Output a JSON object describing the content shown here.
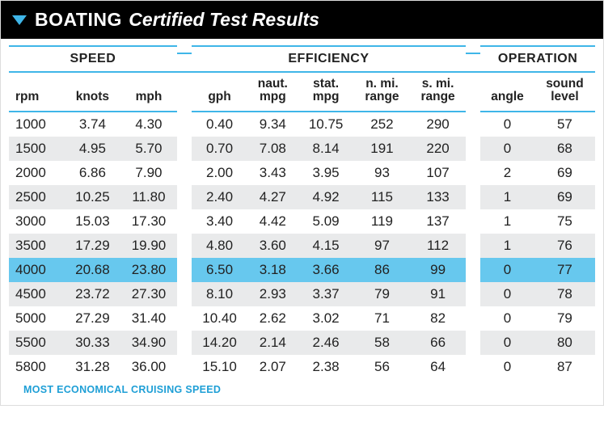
{
  "header": {
    "brand": "BOATING",
    "subtitle": "Certified Test Results"
  },
  "groups": {
    "speed": "SPEED",
    "efficiency": "EFFICIENCY",
    "operation": "OPERATION"
  },
  "columns": {
    "rpm": "rpm",
    "knots": "knots",
    "mph": "mph",
    "gph": "gph",
    "nautmpg_l1": "naut.",
    "nautmpg_l2": "mpg",
    "statmpg_l1": "stat.",
    "statmpg_l2": "mpg",
    "nmirange_l1": "n. mi.",
    "nmirange_l2": "range",
    "smirange_l1": "s. mi.",
    "smirange_l2": "range",
    "angle": "angle",
    "sound_l1": "sound",
    "sound_l2": "level"
  },
  "rows": [
    {
      "rpm": "1000",
      "knots": "3.74",
      "mph": "4.30",
      "gph": "0.40",
      "nautmpg": "9.34",
      "statmpg": "10.75",
      "nmirange": "252",
      "smirange": "290",
      "angle": "0",
      "sound": "57",
      "highlight": false
    },
    {
      "rpm": "1500",
      "knots": "4.95",
      "mph": "5.70",
      "gph": "0.70",
      "nautmpg": "7.08",
      "statmpg": "8.14",
      "nmirange": "191",
      "smirange": "220",
      "angle": "0",
      "sound": "68",
      "highlight": false
    },
    {
      "rpm": "2000",
      "knots": "6.86",
      "mph": "7.90",
      "gph": "2.00",
      "nautmpg": "3.43",
      "statmpg": "3.95",
      "nmirange": "93",
      "smirange": "107",
      "angle": "2",
      "sound": "69",
      "highlight": false
    },
    {
      "rpm": "2500",
      "knots": "10.25",
      "mph": "11.80",
      "gph": "2.40",
      "nautmpg": "4.27",
      "statmpg": "4.92",
      "nmirange": "115",
      "smirange": "133",
      "angle": "1",
      "sound": "69",
      "highlight": false
    },
    {
      "rpm": "3000",
      "knots": "15.03",
      "mph": "17.30",
      "gph": "3.40",
      "nautmpg": "4.42",
      "statmpg": "5.09",
      "nmirange": "119",
      "smirange": "137",
      "angle": "1",
      "sound": "75",
      "highlight": false
    },
    {
      "rpm": "3500",
      "knots": "17.29",
      "mph": "19.90",
      "gph": "4.80",
      "nautmpg": "3.60",
      "statmpg": "4.15",
      "nmirange": "97",
      "smirange": "112",
      "angle": "1",
      "sound": "76",
      "highlight": false
    },
    {
      "rpm": "4000",
      "knots": "20.68",
      "mph": "23.80",
      "gph": "6.50",
      "nautmpg": "3.18",
      "statmpg": "3.66",
      "nmirange": "86",
      "smirange": "99",
      "angle": "0",
      "sound": "77",
      "highlight": true
    },
    {
      "rpm": "4500",
      "knots": "23.72",
      "mph": "27.30",
      "gph": "8.10",
      "nautmpg": "2.93",
      "statmpg": "3.37",
      "nmirange": "79",
      "smirange": "91",
      "angle": "0",
      "sound": "78",
      "highlight": false
    },
    {
      "rpm": "5000",
      "knots": "27.29",
      "mph": "31.40",
      "gph": "10.40",
      "nautmpg": "2.62",
      "statmpg": "3.02",
      "nmirange": "71",
      "smirange": "82",
      "angle": "0",
      "sound": "79",
      "highlight": false
    },
    {
      "rpm": "5500",
      "knots": "30.33",
      "mph": "34.90",
      "gph": "14.20",
      "nautmpg": "2.14",
      "statmpg": "2.46",
      "nmirange": "58",
      "smirange": "66",
      "angle": "0",
      "sound": "80",
      "highlight": false
    },
    {
      "rpm": "5800",
      "knots": "31.28",
      "mph": "36.00",
      "gph": "15.10",
      "nautmpg": "2.07",
      "statmpg": "2.38",
      "nmirange": "56",
      "smirange": "64",
      "angle": "0",
      "sound": "87",
      "highlight": false
    }
  ],
  "footnote": "MOST ECONOMICAL CRUISING SPEED",
  "colors": {
    "accent": "#3fb6e8",
    "highlight_row": "#67c8ee",
    "zebra": "#e9eaeb",
    "header_bg": "#000000",
    "footnote_color": "#1e9fd6"
  }
}
